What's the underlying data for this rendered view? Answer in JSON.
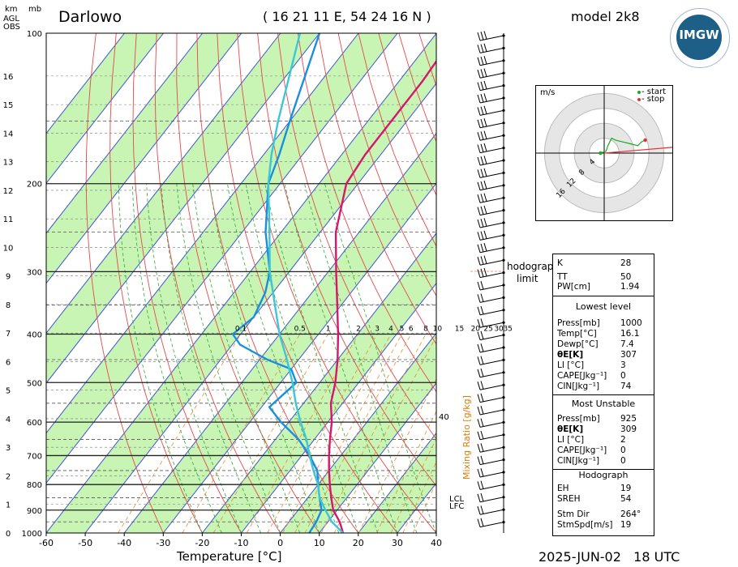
{
  "header": {
    "station": "Darlowo",
    "coords": "( 16 21 11 E, 54 24 16 N )",
    "model": "model 2k8",
    "footer": "2025-JUN-02   18 UTC",
    "logo_text": "IMGW"
  },
  "axis": {
    "left_km_label": "km",
    "left_agl_label": "AGL",
    "left_obs_label": "OBS",
    "mb_label": "mb",
    "xlabel": "Temperature [°C]",
    "mixing_ratio_label": "Mixing Ratio [g/kg]",
    "hodograph_limit_1": "hodograph",
    "hodograph_limit_2": "limit",
    "lcl_label": "LCL",
    "lfc_label": "LFC",
    "mix_40": "40"
  },
  "chart_data": {
    "type": "line",
    "title": "Darlowo",
    "xlabel": "Temperature [°C]",
    "ylabel": "mb",
    "xlim": [
      -60,
      40
    ],
    "ylim": [
      1000,
      100
    ],
    "x_ticks": [
      -60,
      -50,
      -40,
      -30,
      -20,
      -10,
      0,
      10,
      20,
      30,
      40
    ],
    "p_ticks": [
      100,
      200,
      300,
      400,
      500,
      600,
      700,
      800,
      900,
      1000
    ],
    "km_ticks": [
      0,
      1,
      2,
      3,
      4,
      5,
      6,
      7,
      8,
      9,
      10,
      11,
      12,
      13,
      14,
      15,
      16
    ],
    "mixing_ratio_labels": [
      "0.1",
      "0.5",
      "1",
      "2",
      "3",
      "4",
      "5",
      "6",
      "8",
      "10",
      "15",
      "20",
      "25",
      "30",
      "35"
    ],
    "series": [
      {
        "name": "temperature",
        "color": "#d6166f",
        "points": [
          [
            1000,
            16.1
          ],
          [
            950,
            13
          ],
          [
            900,
            9
          ],
          [
            850,
            6
          ],
          [
            800,
            3
          ],
          [
            750,
            0
          ],
          [
            700,
            -3
          ],
          [
            650,
            -6
          ],
          [
            600,
            -9
          ],
          [
            550,
            -13
          ],
          [
            500,
            -16
          ],
          [
            450,
            -20
          ],
          [
            400,
            -25
          ],
          [
            350,
            -31
          ],
          [
            300,
            -38
          ],
          [
            250,
            -46
          ],
          [
            200,
            -53
          ],
          [
            175,
            -54
          ],
          [
            150,
            -54
          ],
          [
            125,
            -54
          ],
          [
            100,
            -55
          ]
        ]
      },
      {
        "name": "dewpoint",
        "color": "#1a8fe0",
        "points": [
          [
            1000,
            7.4
          ],
          [
            950,
            7
          ],
          [
            900,
            6
          ],
          [
            850,
            3
          ],
          [
            800,
            0
          ],
          [
            750,
            -3
          ],
          [
            700,
            -8
          ],
          [
            650,
            -14
          ],
          [
            600,
            -22
          ],
          [
            560,
            -28
          ],
          [
            500,
            -26
          ],
          [
            470,
            -30
          ],
          [
            450,
            -38
          ],
          [
            420,
            -48
          ],
          [
            400,
            -52
          ],
          [
            370,
            -50
          ],
          [
            330,
            -52
          ],
          [
            300,
            -55
          ],
          [
            250,
            -64
          ],
          [
            200,
            -73
          ],
          [
            175,
            -76
          ],
          [
            150,
            -80
          ],
          [
            100,
            -90
          ]
        ]
      },
      {
        "name": "parcel",
        "color": "#3cc6d6",
        "points": [
          [
            1000,
            16.1
          ],
          [
            950,
            11
          ],
          [
            900,
            7
          ],
          [
            850,
            3
          ],
          [
            800,
            0
          ],
          [
            750,
            -4
          ],
          [
            700,
            -8
          ],
          [
            650,
            -12
          ],
          [
            600,
            -17
          ],
          [
            550,
            -22
          ],
          [
            500,
            -27
          ],
          [
            450,
            -33
          ],
          [
            400,
            -40
          ],
          [
            350,
            -47
          ],
          [
            300,
            -55
          ],
          [
            250,
            -63
          ],
          [
            200,
            -73
          ],
          [
            175,
            -78
          ],
          [
            150,
            -83
          ],
          [
            100,
            -95
          ]
        ]
      }
    ],
    "hodograph": {
      "units": "m/s",
      "rings": [
        "4",
        "8",
        "12",
        "16"
      ],
      "legend": [
        "- start",
        "- stop"
      ],
      "legend_colors": [
        "#19a81f",
        "#e83030"
      ],
      "points": [
        [
          -1,
          0
        ],
        [
          0.5,
          0.5
        ],
        [
          1,
          2
        ],
        [
          1.5,
          3
        ],
        [
          2,
          4
        ],
        [
          3,
          3.5
        ],
        [
          5,
          3
        ],
        [
          7,
          2.5
        ],
        [
          9,
          2
        ],
        [
          10,
          3
        ],
        [
          11,
          3.5
        ]
      ],
      "storm_vector": [
        19,
        264
      ]
    },
    "indices": {
      "K": "28",
      "TT": "50",
      "PW": "1.94",
      "lowest_level": {
        "Press": "1000",
        "Temp": "16.1",
        "Dewp": "7.4",
        "ThetaE": "307",
        "LI": "3",
        "CAPE": "0",
        "CIN": "74"
      },
      "most_unstable": {
        "Press": "925",
        "ThetaE": "309",
        "LI": "2",
        "CAPE": "0",
        "CIN": "0"
      },
      "hodograph": {
        "EH": "19",
        "SREH": "54",
        "StmDir": "264°",
        "StmSpd": "19"
      }
    }
  },
  "panel": {
    "k_label": "K",
    "tt_label": "TT",
    "pw_label": "PW[cm]",
    "lowest_title": "Lowest level",
    "press_label": "Press[mb]",
    "temp_label": "Temp[°C]",
    "dewp_label": "Dewp[°C]",
    "thetae_label": "θE[K]",
    "li_label": "LI [°C]",
    "cape_label": "CAPE[Jkg⁻¹]",
    "cin_label": "CIN[Jkg⁻¹]",
    "mu_title": "Most Unstable",
    "mu_press_label": "Press[mb]",
    "mu_thetae_label": "θE[K]",
    "mu_li_label": "LI [°C]",
    "mu_cape_label": "CAPE[Jkg⁻¹]",
    "mu_cin_label": "CIN[Jkg⁻¹]",
    "hodo_title": "Hodograph",
    "eh_label": "EH",
    "sreh_label": "SREH",
    "stmdir_label": "Stm Dir",
    "stmspd_label": "StmSpd[m/s]"
  }
}
